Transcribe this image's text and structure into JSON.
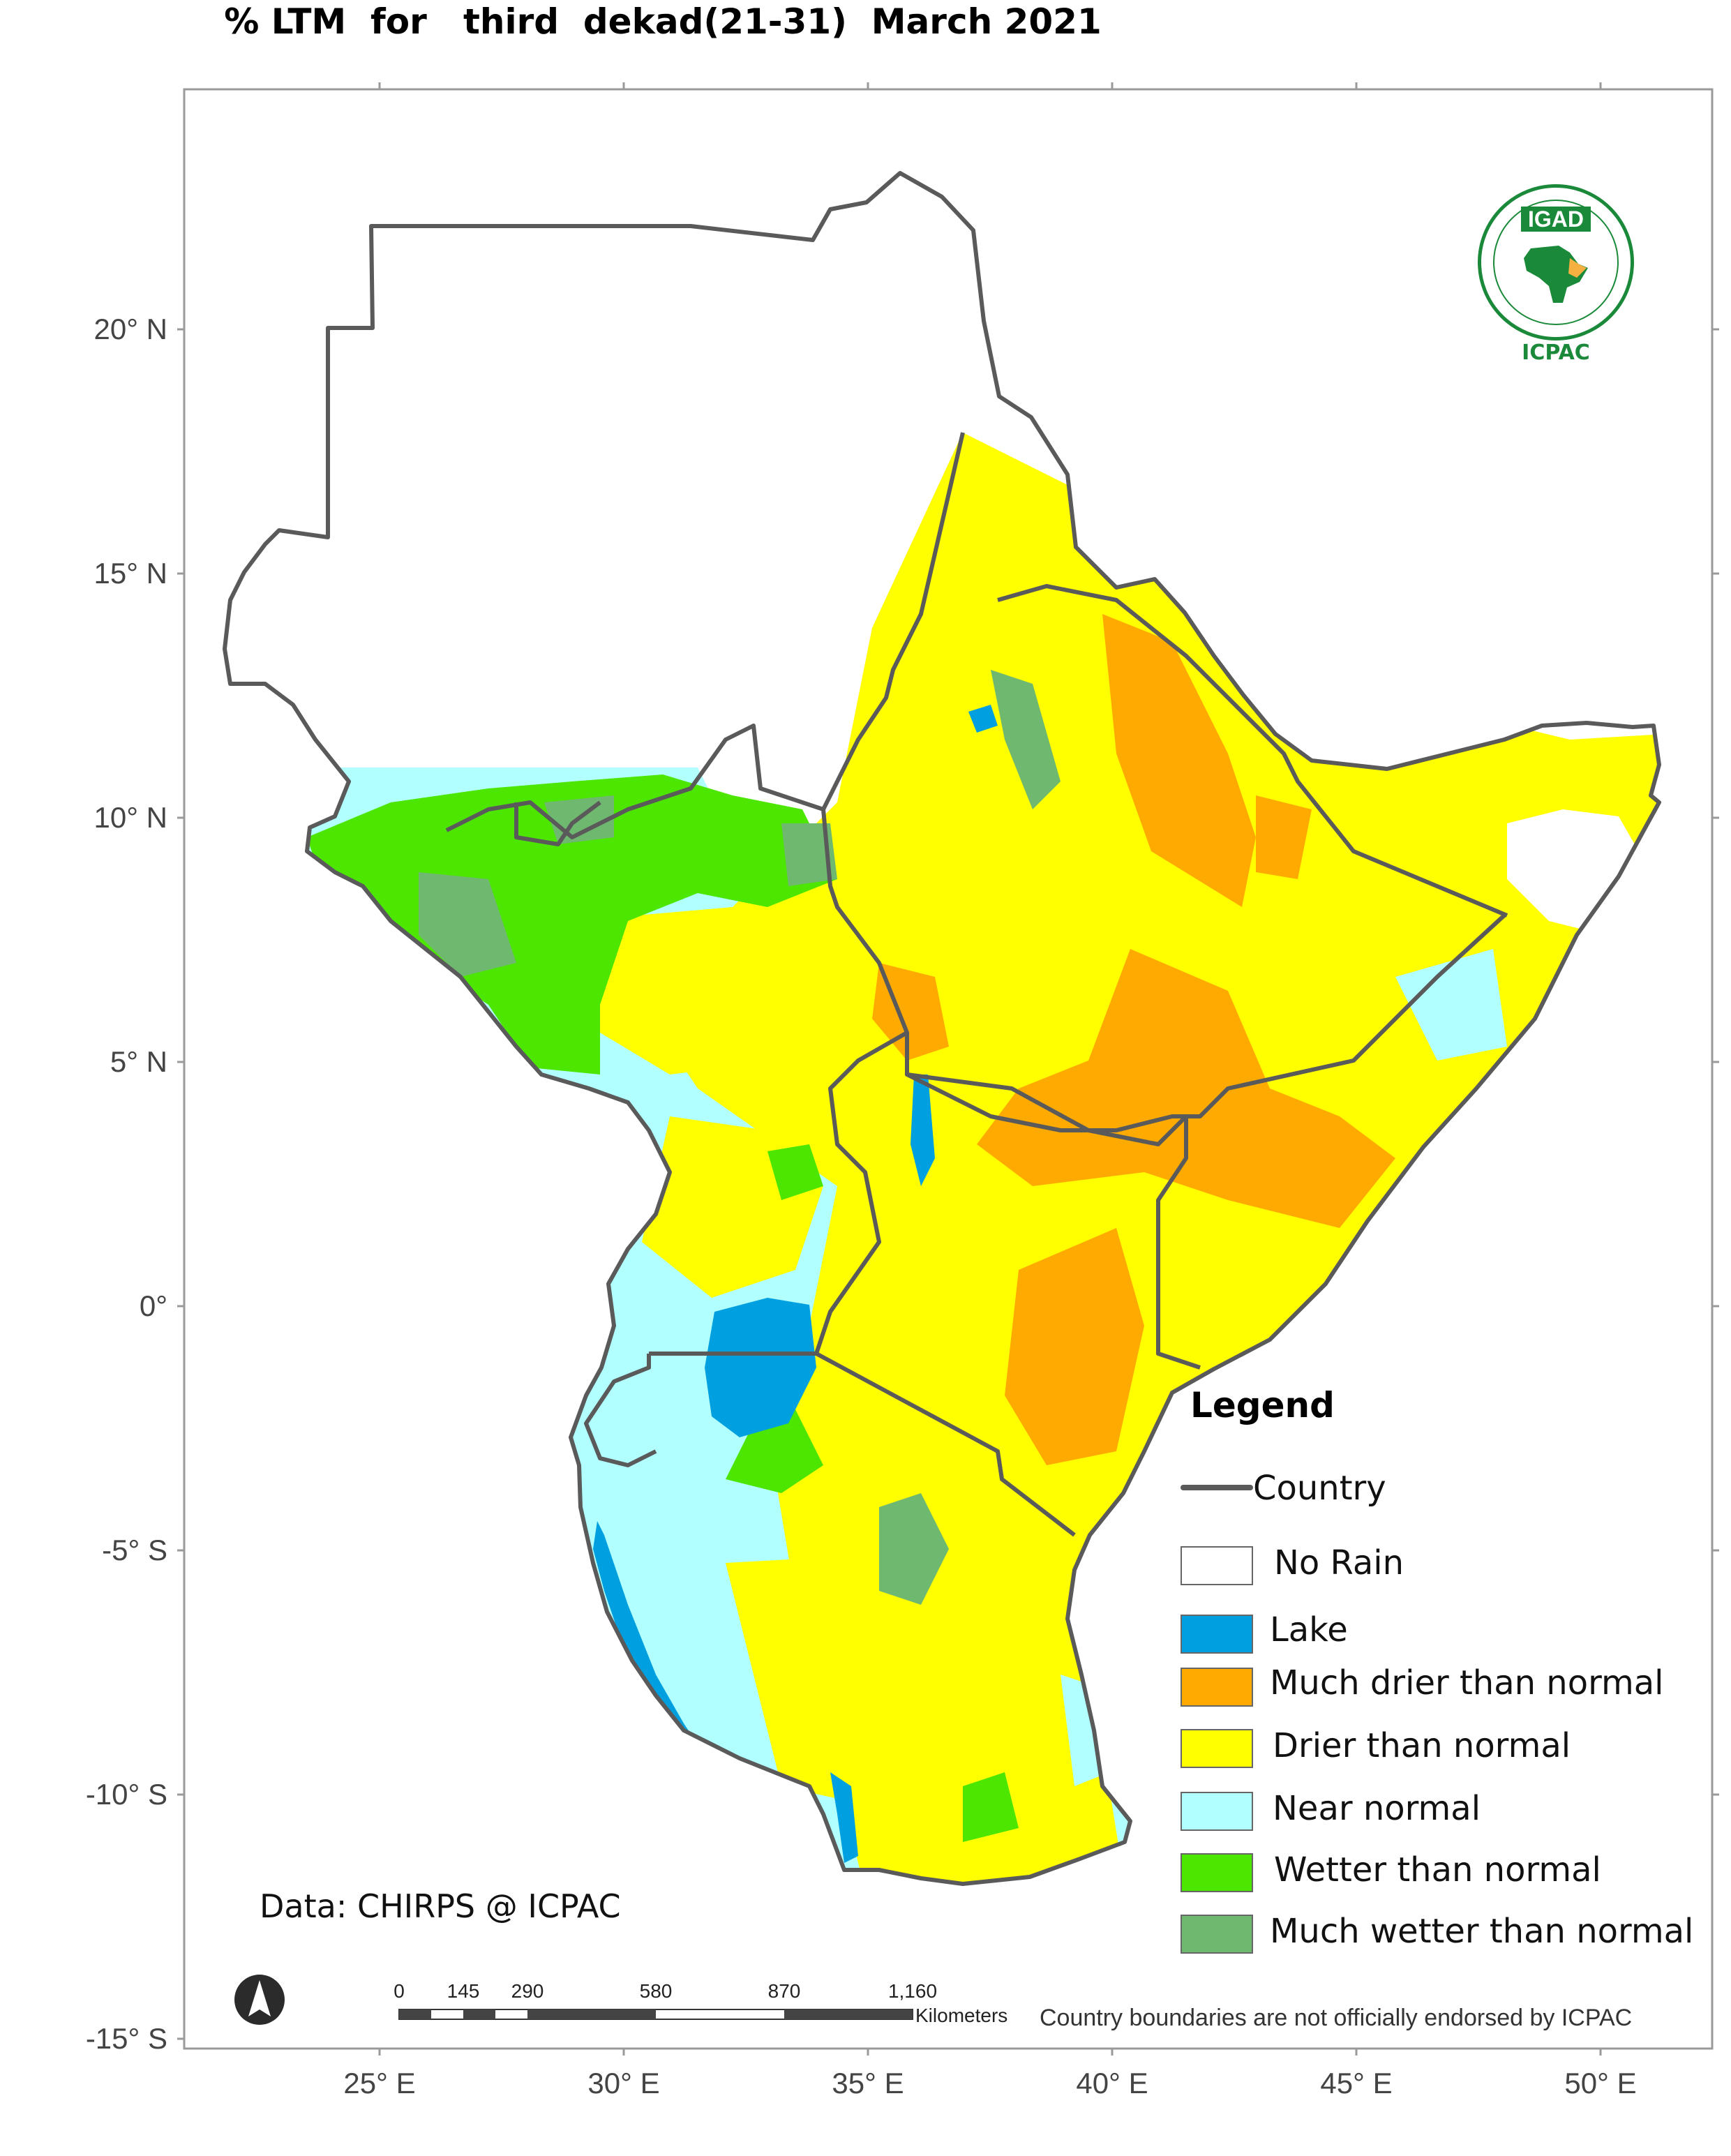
{
  "title": "% LTM  for   third  dekad(21-31)  March 2021",
  "axes": {
    "lat_labels": [
      "20° N",
      "15° N",
      "10° N",
      "5° N",
      "0°",
      "-5° S",
      "-10° S",
      "-15° S"
    ],
    "lon_labels": [
      "25° E",
      "30° E",
      "35° E",
      "40° E",
      "45° E",
      "50° E"
    ]
  },
  "logo": {
    "top_text": "IGAD",
    "bottom_text": "ICPAC",
    "icon": "igad-icpac-emblem"
  },
  "legend": {
    "title": "Legend",
    "country_line": {
      "label": "Country",
      "color": "#5a5a5a"
    },
    "items": [
      {
        "label": "No Rain",
        "color": "#ffffff"
      },
      {
        "label": "Lake",
        "color": "#00a0e0"
      },
      {
        "label": "Much drier than normal",
        "color": "#ffaa00"
      },
      {
        "label": "Drier than normal",
        "color": "#ffff00"
      },
      {
        "label": "Near normal",
        "color": "#b2ffff"
      },
      {
        "label": "Wetter than normal",
        "color": "#4ce600"
      },
      {
        "label": "Much wetter than normal",
        "color": "#6fb86f"
      }
    ]
  },
  "credit": "Data: CHIRPS @ ICPAC",
  "disclaimer": "Country boundaries are not officially endorsed by ICPAC",
  "scale_bar": {
    "ticks": [
      "0",
      "145",
      "290",
      "580",
      "870",
      "1,160"
    ],
    "unit": "Kilometers"
  },
  "north_arrow": "north-arrow-icon"
}
